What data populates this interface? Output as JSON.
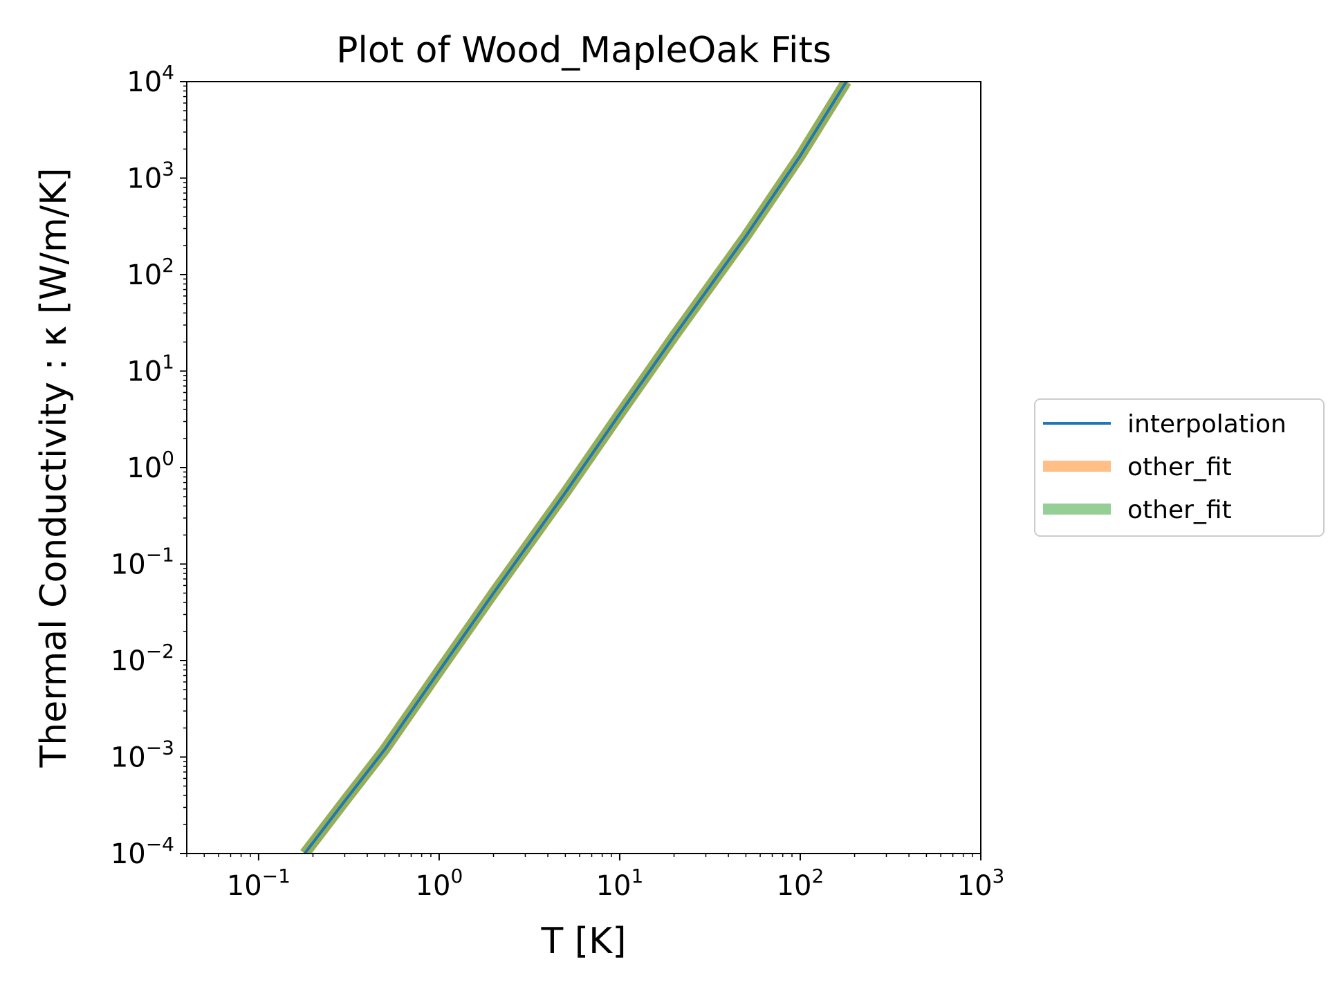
{
  "chart_data": {
    "type": "line",
    "title": "Plot of Wood_MapleOak Fits",
    "xlabel": "T [K]",
    "ylabel": "Thermal Conductivity : κ [W/m/K]",
    "xscale": "log",
    "yscale": "log",
    "xlim": [
      0.04,
      1000
    ],
    "ylim": [
      0.0001,
      10000
    ],
    "x_ticks": [
      {
        "value": 0.1,
        "base": "10",
        "exp": "−1"
      },
      {
        "value": 1,
        "base": "10",
        "exp": "0"
      },
      {
        "value": 10,
        "base": "10",
        "exp": "1"
      },
      {
        "value": 100,
        "base": "10",
        "exp": "2"
      },
      {
        "value": 1000,
        "base": "10",
        "exp": "3"
      }
    ],
    "y_ticks": [
      {
        "value": 0.0001,
        "base": "10",
        "exp": "−4"
      },
      {
        "value": 0.001,
        "base": "10",
        "exp": "−3"
      },
      {
        "value": 0.01,
        "base": "10",
        "exp": "−2"
      },
      {
        "value": 0.1,
        "base": "10",
        "exp": "−1"
      },
      {
        "value": 1,
        "base": "10",
        "exp": "0"
      },
      {
        "value": 10,
        "base": "10",
        "exp": "1"
      },
      {
        "value": 100,
        "base": "10",
        "exp": "2"
      },
      {
        "value": 1000,
        "base": "10",
        "exp": "3"
      },
      {
        "value": 10000,
        "base": "10",
        "exp": "4"
      }
    ],
    "grid": false,
    "legend_position": "right, outside plot",
    "series": [
      {
        "name": "interpolation",
        "color": "#1f77b4",
        "alpha": 1.0,
        "style": "thin",
        "x": [
          0.18,
          0.3,
          0.5,
          1,
          2,
          5,
          10,
          20,
          50,
          100,
          180
        ],
        "y": [
          0.0001,
          0.00035,
          0.0012,
          0.0078,
          0.05,
          0.55,
          3.6,
          23,
          250,
          1700,
          10000
        ]
      },
      {
        "name": "other_fit",
        "color": "#ff7f0e",
        "alpha": 0.5,
        "style": "thick",
        "x": [
          0.18,
          0.3,
          0.5,
          1,
          2,
          5,
          10,
          20,
          50,
          100,
          180
        ],
        "y": [
          0.0001,
          0.00035,
          0.0012,
          0.0078,
          0.05,
          0.55,
          3.6,
          23,
          250,
          1700,
          10000
        ]
      },
      {
        "name": "other_fit",
        "color": "#2ca02c",
        "alpha": 0.5,
        "style": "thick",
        "x": [
          0.18,
          0.3,
          0.5,
          1,
          2,
          5,
          10,
          20,
          50,
          100,
          180
        ],
        "y": [
          0.0001,
          0.00035,
          0.0012,
          0.0078,
          0.05,
          0.55,
          3.6,
          23,
          250,
          1700,
          10000
        ]
      }
    ]
  }
}
